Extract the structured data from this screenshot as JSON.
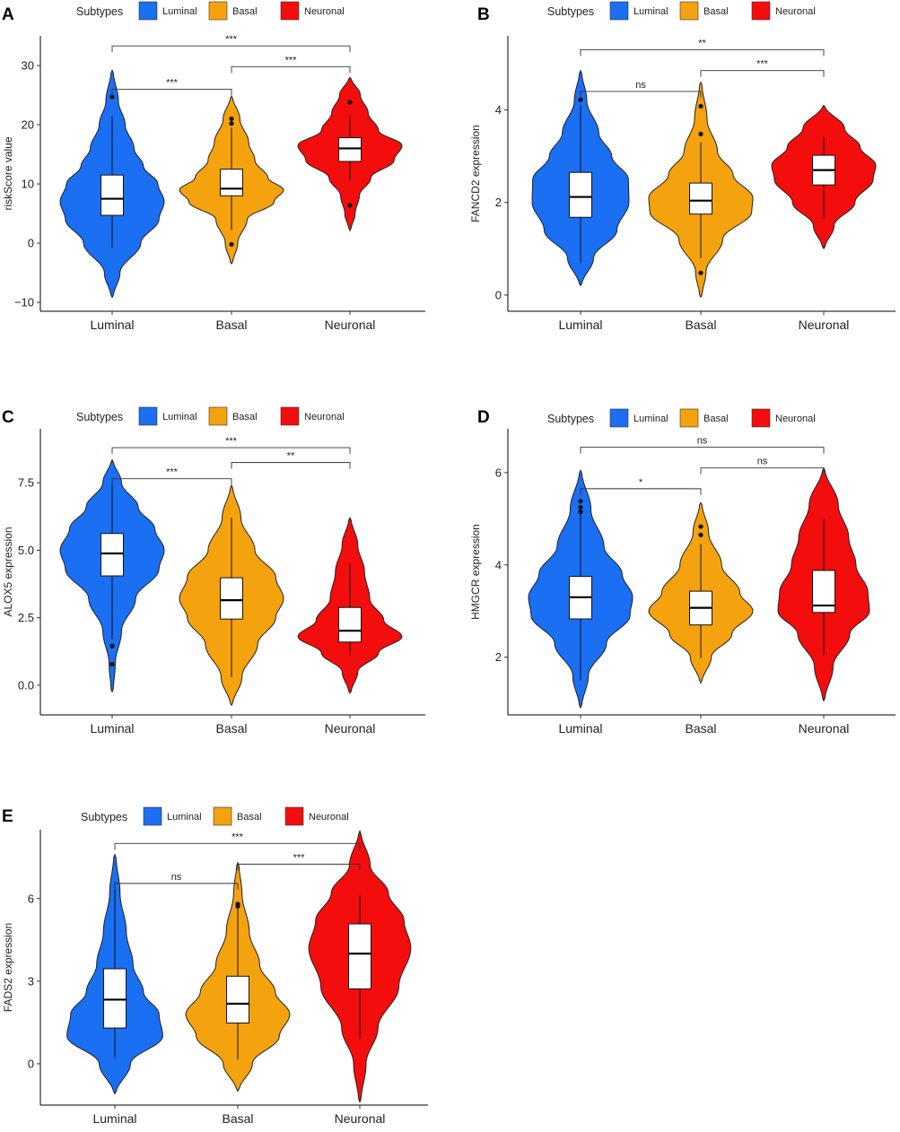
{
  "colors": {
    "Luminal": "#1a6ff2",
    "Basal": "#f5a20f",
    "Neuronal": "#f40d0d"
  },
  "chart_data": [
    {
      "panel": "A",
      "type": "violin",
      "legend_title": "Subtypes",
      "legend": [
        "Luminal",
        "Basal",
        "Neuronal"
      ],
      "categories": [
        "Luminal",
        "Basal",
        "Neuronal"
      ],
      "ylabel": "riskScore value",
      "xlabel": "",
      "ylim": [
        -11.5,
        35
      ],
      "yticks": [
        {
          "v": -10,
          "t": "−10"
        },
        {
          "v": 0,
          "t": "0"
        },
        {
          "v": 10,
          "t": "10"
        },
        {
          "v": 20,
          "t": "20"
        },
        {
          "v": 30,
          "t": "30"
        }
      ],
      "groups": [
        {
          "name": "Luminal",
          "min": -9.2,
          "max": 29.2,
          "q1": 4.7,
          "median": 7.5,
          "q3": 11.5,
          "wlo": -0.8,
          "whi": 21.5,
          "outliers": [
            24.7
          ],
          "profile": [
            [
              -9.2,
              0.02
            ],
            [
              -5,
              0.15
            ],
            [
              0,
              0.55
            ],
            [
              4,
              0.9
            ],
            [
              7,
              1.0
            ],
            [
              10,
              0.88
            ],
            [
              13,
              0.6
            ],
            [
              16,
              0.42
            ],
            [
              20,
              0.25
            ],
            [
              24,
              0.12
            ],
            [
              29.2,
              0.02
            ]
          ]
        },
        {
          "name": "Basal",
          "min": -3.5,
          "max": 24.8,
          "q1": 8.0,
          "median": 9.2,
          "q3": 12.5,
          "wlo": 2.2,
          "whi": 19.5,
          "outliers": [
            21.0,
            20.2,
            -0.2
          ],
          "profile": [
            [
              -3.5,
              0.02
            ],
            [
              0,
              0.12
            ],
            [
              4,
              0.3
            ],
            [
              7,
              0.82
            ],
            [
              9,
              1.0
            ],
            [
              11,
              0.7
            ],
            [
              14,
              0.45
            ],
            [
              17,
              0.33
            ],
            [
              21,
              0.16
            ],
            [
              24.8,
              0.02
            ]
          ]
        },
        {
          "name": "Neuronal",
          "min": 2.2,
          "max": 28.0,
          "q1": 13.8,
          "median": 16.0,
          "q3": 17.8,
          "wlo": 10.5,
          "whi": 21.5,
          "outliers": [
            23.8,
            6.4
          ],
          "profile": [
            [
              2.2,
              0.02
            ],
            [
              5,
              0.1
            ],
            [
              8,
              0.18
            ],
            [
              11,
              0.4
            ],
            [
              14,
              0.85
            ],
            [
              16.5,
              1.0
            ],
            [
              19,
              0.55
            ],
            [
              22,
              0.35
            ],
            [
              25,
              0.2
            ],
            [
              28,
              0.02
            ]
          ]
        }
      ],
      "comparisons": [
        {
          "from": 0,
          "to": 1,
          "y": 26.0,
          "label": "***"
        },
        {
          "from": 1,
          "to": 2,
          "y": 29.8,
          "label": "***"
        },
        {
          "from": 0,
          "to": 2,
          "y": 33.3,
          "label": "***"
        }
      ]
    },
    {
      "panel": "B",
      "type": "violin",
      "legend_title": "Subtypes",
      "legend": [
        "Luminal",
        "Basal",
        "Neuronal"
      ],
      "categories": [
        "Luminal",
        "Basal",
        "Neuronal"
      ],
      "ylabel": "FANCD2 expression",
      "xlabel": "",
      "ylim": [
        -0.35,
        5.6
      ],
      "yticks": [
        {
          "v": 0,
          "t": "0"
        },
        {
          "v": 2,
          "t": "2"
        },
        {
          "v": 4,
          "t": "4"
        }
      ],
      "groups": [
        {
          "name": "Luminal",
          "min": 0.2,
          "max": 4.85,
          "q1": 1.68,
          "median": 2.12,
          "q3": 2.65,
          "wlo": 0.7,
          "whi": 4.1,
          "outliers": [
            4.22
          ],
          "profile": [
            [
              0.2,
              0.02
            ],
            [
              0.8,
              0.25
            ],
            [
              1.4,
              0.7
            ],
            [
              2.0,
              0.93
            ],
            [
              2.5,
              0.92
            ],
            [
              3.0,
              0.6
            ],
            [
              3.5,
              0.35
            ],
            [
              4.2,
              0.12
            ],
            [
              4.85,
              0.02
            ]
          ]
        },
        {
          "name": "Basal",
          "min": -0.05,
          "max": 4.6,
          "q1": 1.75,
          "median": 2.04,
          "q3": 2.42,
          "wlo": 0.8,
          "whi": 3.3,
          "outliers": [
            4.08,
            3.48,
            0.48
          ],
          "profile": [
            [
              -0.05,
              0.02
            ],
            [
              0.5,
              0.1
            ],
            [
              1.2,
              0.42
            ],
            [
              1.8,
              0.98
            ],
            [
              2.1,
              1.0
            ],
            [
              2.6,
              0.62
            ],
            [
              3.1,
              0.32
            ],
            [
              3.8,
              0.12
            ],
            [
              4.6,
              0.02
            ]
          ]
        },
        {
          "name": "Neuronal",
          "min": 1.0,
          "max": 4.1,
          "q1": 2.38,
          "median": 2.7,
          "q3": 3.02,
          "wlo": 1.65,
          "whi": 3.42,
          "outliers": [],
          "profile": [
            [
              1.0,
              0.02
            ],
            [
              1.5,
              0.2
            ],
            [
              2.0,
              0.6
            ],
            [
              2.5,
              0.95
            ],
            [
              2.8,
              1.0
            ],
            [
              3.2,
              0.7
            ],
            [
              3.6,
              0.4
            ],
            [
              4.1,
              0.02
            ]
          ]
        }
      ],
      "comparisons": [
        {
          "from": 0,
          "to": 1,
          "y": 4.4,
          "label": "ns"
        },
        {
          "from": 1,
          "to": 2,
          "y": 4.85,
          "label": "***"
        },
        {
          "from": 0,
          "to": 2,
          "y": 5.3,
          "label": "**"
        }
      ]
    },
    {
      "panel": "C",
      "type": "violin",
      "legend_title": "Subtypes",
      "legend": [
        "Luminal",
        "Basal",
        "Neuronal"
      ],
      "categories": [
        "Luminal",
        "Basal",
        "Neuronal"
      ],
      "ylabel": "ALOX5 expression",
      "xlabel": "",
      "ylim": [
        -1.1,
        9.5
      ],
      "yticks": [
        {
          "v": 0,
          "t": "0.0"
        },
        {
          "v": 2.5,
          "t": "2.5"
        },
        {
          "v": 5,
          "t": "5.0"
        },
        {
          "v": 7.5,
          "t": "7.5"
        }
      ],
      "groups": [
        {
          "name": "Luminal",
          "min": -0.25,
          "max": 8.35,
          "q1": 4.05,
          "median": 4.88,
          "q3": 5.62,
          "wlo": 1.7,
          "whi": 7.6,
          "outliers": [
            1.45,
            0.78
          ],
          "profile": [
            [
              -0.25,
              0.02
            ],
            [
              0.8,
              0.06
            ],
            [
              2.0,
              0.18
            ],
            [
              3.2,
              0.45
            ],
            [
              4.3,
              0.9
            ],
            [
              5.0,
              1.0
            ],
            [
              5.8,
              0.82
            ],
            [
              6.6,
              0.5
            ],
            [
              7.5,
              0.18
            ],
            [
              8.35,
              0.02
            ]
          ]
        },
        {
          "name": "Basal",
          "min": -0.75,
          "max": 7.4,
          "q1": 2.45,
          "median": 3.15,
          "q3": 3.98,
          "wlo": 0.3,
          "whi": 6.2,
          "outliers": [],
          "profile": [
            [
              -0.75,
              0.02
            ],
            [
              0.3,
              0.2
            ],
            [
              1.5,
              0.5
            ],
            [
              2.5,
              0.85
            ],
            [
              3.2,
              1.0
            ],
            [
              4.0,
              0.85
            ],
            [
              5.0,
              0.45
            ],
            [
              6.2,
              0.18
            ],
            [
              7.4,
              0.02
            ]
          ]
        },
        {
          "name": "Neuronal",
          "min": -0.3,
          "max": 6.2,
          "q1": 1.6,
          "median": 2.02,
          "q3": 2.88,
          "wlo": 1.12,
          "whi": 4.5,
          "outliers": [],
          "profile": [
            [
              -0.3,
              0.02
            ],
            [
              0.5,
              0.15
            ],
            [
              1.2,
              0.55
            ],
            [
              1.8,
              1.0
            ],
            [
              2.4,
              0.65
            ],
            [
              3.2,
              0.38
            ],
            [
              4.2,
              0.28
            ],
            [
              5.2,
              0.15
            ],
            [
              6.2,
              0.02
            ]
          ]
        }
      ],
      "comparisons": [
        {
          "from": 0,
          "to": 1,
          "y": 7.65,
          "label": "***"
        },
        {
          "from": 1,
          "to": 2,
          "y": 8.25,
          "label": "**"
        },
        {
          "from": 0,
          "to": 2,
          "y": 8.8,
          "label": "***"
        }
      ]
    },
    {
      "panel": "D",
      "type": "violin",
      "legend_title": "Subtypes",
      "legend": [
        "Luminal",
        "Basal",
        "Neuronal"
      ],
      "categories": [
        "Luminal",
        "Basal",
        "Neuronal"
      ],
      "ylabel": "HMGCR expression",
      "xlabel": "",
      "ylim": [
        0.75,
        6.95
      ],
      "yticks": [
        {
          "v": 2,
          "t": "2"
        },
        {
          "v": 4,
          "t": "4"
        },
        {
          "v": 6,
          "t": "6"
        }
      ],
      "groups": [
        {
          "name": "Luminal",
          "min": 0.9,
          "max": 6.05,
          "q1": 2.83,
          "median": 3.3,
          "q3": 3.75,
          "wlo": 1.5,
          "whi": 5.1,
          "outliers": [
            5.38,
            5.25,
            5.15
          ],
          "profile": [
            [
              0.9,
              0.02
            ],
            [
              1.6,
              0.15
            ],
            [
              2.3,
              0.5
            ],
            [
              2.9,
              0.95
            ],
            [
              3.3,
              1.0
            ],
            [
              3.8,
              0.8
            ],
            [
              4.4,
              0.45
            ],
            [
              5.2,
              0.2
            ],
            [
              6.05,
              0.02
            ]
          ]
        },
        {
          "name": "Basal",
          "min": 1.45,
          "max": 5.35,
          "q1": 2.7,
          "median": 3.07,
          "q3": 3.43,
          "wlo": 1.98,
          "whi": 4.45,
          "outliers": [
            4.83,
            4.65
          ],
          "profile": [
            [
              1.45,
              0.02
            ],
            [
              2.0,
              0.2
            ],
            [
              2.5,
              0.6
            ],
            [
              3.0,
              1.0
            ],
            [
              3.4,
              0.75
            ],
            [
              4.0,
              0.4
            ],
            [
              4.7,
              0.15
            ],
            [
              5.35,
              0.02
            ]
          ]
        },
        {
          "name": "Neuronal",
          "min": 1.05,
          "max": 6.1,
          "q1": 2.97,
          "median": 3.12,
          "q3": 3.88,
          "wlo": 2.05,
          "whi": 5.0,
          "outliers": [],
          "profile": [
            [
              1.05,
              0.02
            ],
            [
              1.8,
              0.18
            ],
            [
              2.5,
              0.5
            ],
            [
              3.0,
              0.88
            ],
            [
              3.4,
              0.85
            ],
            [
              4.0,
              0.62
            ],
            [
              4.6,
              0.48
            ],
            [
              5.3,
              0.28
            ],
            [
              6.1,
              0.02
            ]
          ]
        }
      ],
      "comparisons": [
        {
          "from": 0,
          "to": 1,
          "y": 5.65,
          "label": "*"
        },
        {
          "from": 1,
          "to": 2,
          "y": 6.1,
          "label": "ns"
        },
        {
          "from": 0,
          "to": 2,
          "y": 6.55,
          "label": "ns"
        }
      ]
    },
    {
      "panel": "E",
      "type": "violin",
      "legend_title": "Subtypes",
      "legend": [
        "Luminal",
        "Basal",
        "Neuronal"
      ],
      "categories": [
        "Luminal",
        "Basal",
        "Neuronal"
      ],
      "ylabel": "FADS2 expression",
      "xlabel": "",
      "ylim": [
        -1.5,
        8.5
      ],
      "yticks": [
        {
          "v": 0,
          "t": "0"
        },
        {
          "v": 3,
          "t": "3"
        },
        {
          "v": 6,
          "t": "6"
        }
      ],
      "groups": [
        {
          "name": "Luminal",
          "min": -1.1,
          "max": 7.6,
          "q1": 1.3,
          "median": 2.33,
          "q3": 3.45,
          "wlo": 0.2,
          "whi": 6.6,
          "outliers": [],
          "profile": [
            [
              -1.1,
              0.02
            ],
            [
              0,
              0.3
            ],
            [
              1.0,
              0.92
            ],
            [
              1.8,
              0.85
            ],
            [
              2.6,
              0.55
            ],
            [
              3.6,
              0.35
            ],
            [
              4.8,
              0.22
            ],
            [
              6.2,
              0.1
            ],
            [
              7.6,
              0.02
            ]
          ]
        },
        {
          "name": "Basal",
          "min": -1.0,
          "max": 7.3,
          "q1": 1.48,
          "median": 2.18,
          "q3": 3.18,
          "wlo": 0.15,
          "whi": 5.7,
          "outliers": [
            5.8,
            5.72
          ],
          "profile": [
            [
              -1.0,
              0.02
            ],
            [
              0,
              0.28
            ],
            [
              1.0,
              0.8
            ],
            [
              1.8,
              1.0
            ],
            [
              2.6,
              0.72
            ],
            [
              3.6,
              0.42
            ],
            [
              4.8,
              0.22
            ],
            [
              6.2,
              0.08
            ],
            [
              7.3,
              0.02
            ]
          ]
        },
        {
          "name": "Neuronal",
          "min": -1.4,
          "max": 8.45,
          "q1": 2.72,
          "median": 4.0,
          "q3": 5.08,
          "wlo": 0.9,
          "whi": 6.15,
          "outliers": [],
          "profile": [
            [
              -1.4,
              0.02
            ],
            [
              0,
              0.12
            ],
            [
              1.3,
              0.35
            ],
            [
              2.8,
              0.75
            ],
            [
              4.2,
              0.98
            ],
            [
              5.2,
              0.85
            ],
            [
              6.2,
              0.55
            ],
            [
              7.2,
              0.2
            ],
            [
              8.45,
              0.02
            ]
          ]
        }
      ],
      "comparisons": [
        {
          "from": 0,
          "to": 1,
          "y": 6.55,
          "label": "ns"
        },
        {
          "from": 1,
          "to": 2,
          "y": 7.25,
          "label": "***"
        },
        {
          "from": 0,
          "to": 2,
          "y": 8.0,
          "label": "***"
        }
      ]
    }
  ]
}
